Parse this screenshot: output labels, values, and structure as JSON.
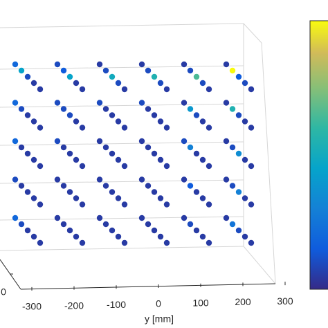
{
  "chart_data": {
    "type": "scatter3d",
    "ylabel": "y [mm]",
    "yticks": [
      -300,
      -200,
      -100,
      0,
      100,
      200,
      300
    ],
    "xticks": [
      0
    ],
    "clim": [
      0,
      1
    ],
    "colormap": "parula",
    "series": [
      {
        "x": [
          -200,
          -100,
          0,
          100,
          200,
          -200,
          -100,
          0,
          100,
          200,
          -200,
          -100,
          0,
          100,
          200,
          -200,
          -100,
          0,
          100,
          200,
          -200,
          -100,
          0,
          100,
          200,
          -200,
          -100,
          0,
          100,
          200,
          -200,
          -100,
          0,
          100,
          200,
          -200,
          -100,
          0,
          100,
          200,
          -200,
          -100,
          0,
          100,
          200,
          -200,
          -100,
          0,
          100,
          200,
          -200,
          -100,
          0,
          100,
          200,
          -200,
          -100,
          0,
          100,
          200,
          -200,
          -100,
          0,
          100,
          200,
          -200,
          -100,
          0,
          100,
          200,
          -200,
          -100,
          0,
          100,
          200,
          -200,
          -100,
          0,
          100,
          200,
          -200,
          -100,
          0,
          100,
          200,
          -200,
          -100,
          0,
          100,
          200,
          -200,
          -100,
          0,
          100,
          200,
          -200,
          -100,
          0,
          100,
          200,
          -200,
          -100,
          0,
          100,
          200,
          -200,
          -100,
          0,
          100,
          200,
          -200,
          -100,
          0,
          100,
          200,
          -200,
          -100,
          0,
          100,
          200,
          -200,
          -100,
          0,
          100,
          200,
          -200,
          -100,
          0,
          100,
          200,
          -200,
          -100,
          0,
          100,
          200,
          -200,
          -100,
          0,
          100,
          200,
          -200,
          -100,
          0,
          100,
          200,
          -200,
          -100,
          0,
          100,
          200
        ],
        "y": [
          -250,
          -250,
          -250,
          -250,
          -250,
          -150,
          -150,
          -150,
          -150,
          -150,
          -50,
          -50,
          -50,
          -50,
          -50,
          50,
          50,
          50,
          50,
          50,
          150,
          150,
          150,
          150,
          150,
          250,
          250,
          250,
          250,
          250,
          -250,
          -250,
          -250,
          -250,
          -250,
          -150,
          -150,
          -150,
          -150,
          -150,
          -50,
          -50,
          -50,
          -50,
          -50,
          50,
          50,
          50,
          50,
          50,
          150,
          150,
          150,
          150,
          150,
          250,
          250,
          250,
          250,
          250,
          -250,
          -250,
          -250,
          -250,
          -250,
          -150,
          -150,
          -150,
          -150,
          -150,
          -50,
          -50,
          -50,
          -50,
          -50,
          50,
          50,
          50,
          50,
          50,
          150,
          150,
          150,
          150,
          150,
          250,
          250,
          250,
          250,
          250,
          -250,
          -250,
          -250,
          -250,
          -250,
          -150,
          -150,
          -150,
          -150,
          -150,
          -50,
          -50,
          -50,
          -50,
          -50,
          50,
          50,
          50,
          50,
          50,
          150,
          150,
          150,
          150,
          150,
          250,
          250,
          250,
          250,
          250,
          -250,
          -250,
          -250,
          -250,
          -250,
          -150,
          -150,
          -150,
          -150,
          -150,
          -50,
          -50,
          -50,
          -50,
          -50,
          50,
          50,
          50,
          50,
          50,
          150,
          150,
          150,
          150,
          150,
          250,
          250,
          250,
          250,
          250
        ],
        "z": [
          400,
          400,
          400,
          400,
          400,
          400,
          400,
          400,
          400,
          400,
          400,
          400,
          400,
          400,
          400,
          400,
          400,
          400,
          400,
          400,
          400,
          400,
          400,
          400,
          400,
          400,
          400,
          400,
          400,
          400,
          300,
          300,
          300,
          300,
          300,
          300,
          300,
          300,
          300,
          300,
          300,
          300,
          300,
          300,
          300,
          300,
          300,
          300,
          300,
          300,
          300,
          300,
          300,
          300,
          300,
          300,
          300,
          300,
          300,
          300,
          200,
          200,
          200,
          200,
          200,
          200,
          200,
          200,
          200,
          200,
          200,
          200,
          200,
          200,
          200,
          200,
          200,
          200,
          200,
          200,
          200,
          200,
          200,
          200,
          200,
          200,
          200,
          200,
          200,
          200,
          100,
          100,
          100,
          100,
          100,
          100,
          100,
          100,
          100,
          100,
          100,
          100,
          100,
          100,
          100,
          100,
          100,
          100,
          100,
          100,
          100,
          100,
          100,
          100,
          100,
          100,
          100,
          100,
          100,
          100,
          0,
          0,
          0,
          0,
          0,
          0,
          0,
          0,
          0,
          0,
          0,
          0,
          0,
          0,
          0,
          0,
          0,
          0,
          0,
          0,
          0,
          0,
          0,
          0,
          0,
          0,
          0,
          0,
          0,
          0
        ],
        "c": [
          0.2,
          0.45,
          0.1,
          0.05,
          0.05,
          0.1,
          0.15,
          0.45,
          0.05,
          0.05,
          0.05,
          0.1,
          0.5,
          0.1,
          0.05,
          0.05,
          0.1,
          0.55,
          0.1,
          0.05,
          0.05,
          0.1,
          0.65,
          0.1,
          0.05,
          0.05,
          1.0,
          0.15,
          0.1,
          0.05,
          0.2,
          0.1,
          0.05,
          0.05,
          0.05,
          0.1,
          0.1,
          0.1,
          0.05,
          0.05,
          0.1,
          0.05,
          0.05,
          0.05,
          0.05,
          0.1,
          0.05,
          0.05,
          0.05,
          0.05,
          0.05,
          0.4,
          0.1,
          0.05,
          0.05,
          0.05,
          0.55,
          0.1,
          0.05,
          0.05,
          0.2,
          0.05,
          0.05,
          0.05,
          0.05,
          0.1,
          0.05,
          0.05,
          0.05,
          0.05,
          0.05,
          0.05,
          0.05,
          0.05,
          0.05,
          0.05,
          0.05,
          0.05,
          0.05,
          0.05,
          0.1,
          0.3,
          0.05,
          0.05,
          0.05,
          0.05,
          0.1,
          0.35,
          0.05,
          0.05,
          0.1,
          0.05,
          0.05,
          0.05,
          0.05,
          0.05,
          0.05,
          0.05,
          0.05,
          0.05,
          0.05,
          0.05,
          0.05,
          0.05,
          0.05,
          0.05,
          0.05,
          0.05,
          0.05,
          0.05,
          0.05,
          0.15,
          0.05,
          0.05,
          0.05,
          0.05,
          0.1,
          0.3,
          0.05,
          0.05,
          0.2,
          0.1,
          0.05,
          0.05,
          0.05,
          0.05,
          0.05,
          0.05,
          0.05,
          0.05,
          0.05,
          0.05,
          0.05,
          0.05,
          0.05,
          0.05,
          0.05,
          0.05,
          0.05,
          0.05,
          0.05,
          0.1,
          0.05,
          0.05,
          0.05,
          0.05,
          0.25,
          0.1,
          0.05,
          0.05
        ]
      }
    ]
  }
}
